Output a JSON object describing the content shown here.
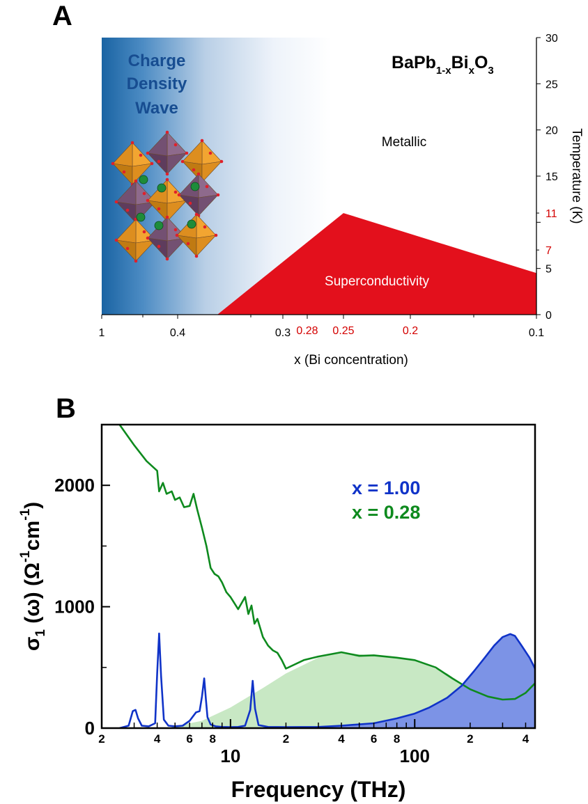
{
  "panels": {
    "a": {
      "letter": "A"
    },
    "b": {
      "letter": "B"
    }
  },
  "chart_data": [
    {
      "type": "area",
      "panel": "A",
      "compound": {
        "base": "BaPb",
        "sub1": "1-x",
        "mid": "Bi",
        "sub2": "x",
        "end": "O",
        "sub3": "3"
      },
      "xlabel": "x (Bi concentration)",
      "ylabel": "Temperature (K)",
      "x_axis_reversed": true,
      "x_ticks_black": [
        "1",
        "0.4",
        "0.3",
        "0.1"
      ],
      "x_ticks_red": [
        "0.28",
        "0.25",
        "0.2"
      ],
      "y_ticks_black": [
        "0",
        "5",
        "10",
        "15",
        "20",
        "25",
        "30"
      ],
      "y_ticks_red": [
        "7",
        "11"
      ],
      "ylim": [
        0,
        30
      ],
      "regions": [
        {
          "label": "Charge Density Wave",
          "lines": [
            "Charge",
            "Density",
            "Wave"
          ],
          "color": "#1f6aa8"
        },
        {
          "label": "Metallic",
          "color": "#ffffff"
        },
        {
          "label": "Superconductivity",
          "color": "#e3101c"
        }
      ],
      "superconducting_dome": [
        {
          "x": 0.37,
          "Tc": 0
        },
        {
          "x": 0.25,
          "Tc": 11
        },
        {
          "x": 0.1,
          "Tc": 4.5
        }
      ],
      "grid": false
    },
    {
      "type": "line",
      "panel": "B",
      "xlabel": "Frequency (THz)",
      "ylabel_parts": {
        "a": "σ",
        "b": "1",
        "c": " (ω) (Ω",
        "d": "-1",
        "e": "cm",
        "f": "-1",
        "g": ")"
      },
      "x_scale": "log",
      "xlim": [
        2,
        450
      ],
      "ylim": [
        0,
        2500
      ],
      "x_major_ticks": [
        "10",
        "100"
      ],
      "x_minor_ticks": [
        "2",
        "4",
        "6",
        "8",
        "2",
        "4",
        "6",
        "8",
        "2",
        "4"
      ],
      "y_ticks": [
        "0",
        "1000",
        "2000"
      ],
      "legend_position": "top-right",
      "grid": false,
      "series": [
        {
          "name": "x = 1.00",
          "color": "#1033c8",
          "fill": "#7c93e6",
          "x": [
            2.5,
            2.8,
            2.95,
            3.05,
            3.15,
            3.3,
            3.6,
            3.9,
            4.0,
            4.1,
            4.2,
            4.35,
            4.6,
            5.0,
            5.5,
            6.0,
            6.5,
            6.8,
            7.0,
            7.2,
            7.35,
            7.5,
            7.8,
            8.3,
            9.0,
            10,
            11,
            12,
            12.8,
            13.2,
            13.6,
            14.2,
            16,
            20,
            30,
            40,
            60,
            80,
            100,
            120,
            150,
            180,
            210,
            240,
            270,
            300,
            330,
            350,
            380,
            420,
            450
          ],
          "y": [
            0,
            20,
            140,
            150,
            80,
            20,
            15,
            40,
            450,
            780,
            430,
            70,
            20,
            15,
            20,
            60,
            130,
            140,
            260,
            410,
            240,
            90,
            30,
            15,
            10,
            8,
            10,
            20,
            150,
            390,
            160,
            25,
            10,
            8,
            10,
            20,
            40,
            80,
            120,
            170,
            250,
            350,
            470,
            580,
            680,
            750,
            775,
            760,
            680,
            580,
            490
          ]
        },
        {
          "name": "x = 0.28",
          "color": "#0e8a1e",
          "fill": "#c8e8c4",
          "x": [
            2.5,
            3,
            3.5,
            4.0,
            4.1,
            4.3,
            4.5,
            4.8,
            5.0,
            5.3,
            5.6,
            6.0,
            6.3,
            6.6,
            7.0,
            7.4,
            7.8,
            8.2,
            8.6,
            9.0,
            9.5,
            10,
            11,
            12,
            12.5,
            13,
            13.5,
            14,
            15,
            16,
            17,
            18,
            19,
            20,
            25,
            30,
            40,
            50,
            60,
            80,
            100,
            130,
            160,
            200,
            250,
            300,
            350,
            400,
            450
          ],
          "y": [
            2500,
            2330,
            2200,
            2120,
            1950,
            2020,
            1930,
            1950,
            1880,
            1900,
            1820,
            1830,
            1930,
            1800,
            1650,
            1500,
            1320,
            1270,
            1250,
            1200,
            1120,
            1080,
            980,
            1080,
            940,
            1010,
            860,
            900,
            750,
            680,
            640,
            620,
            560,
            490,
            560,
            590,
            625,
            595,
            600,
            580,
            560,
            500,
            410,
            320,
            260,
            235,
            240,
            290,
            370
          ]
        }
      ],
      "fill_curve_x028": {
        "x": [
          4.8,
          7,
          10,
          15,
          20,
          30,
          40,
          60,
          100,
          150,
          200
        ],
        "y": [
          10,
          60,
          170,
          330,
          450,
          580,
          625,
          595,
          560,
          450,
          320
        ]
      }
    }
  ]
}
